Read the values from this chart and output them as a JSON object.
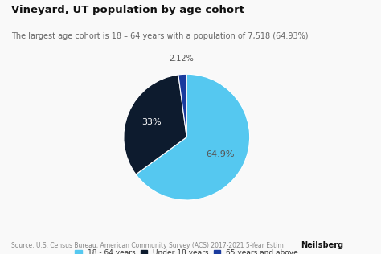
{
  "title": "Vineyard, UT population by age cohort",
  "subtitle": "The largest age cohort is 18 – 64 years with a population of 7,518 (64.93%)",
  "slices": [
    64.93,
    32.95,
    2.12
  ],
  "labels": [
    "18 - 64 years",
    "Under 18 years",
    "65 years and above"
  ],
  "colors": [
    "#55c8f0",
    "#0d1b2e",
    "#1a3b9e"
  ],
  "pct_labels": [
    "64.9%",
    "33%",
    "2.12%"
  ],
  "source_text": "Source: U.S. Census Bureau, American Community Survey (ACS) 2017-2021 5-Year Estim",
  "neilsberg_text": "Neilsberg",
  "background_color": "#f9f9f9",
  "startangle": 90,
  "title_fontsize": 9.5,
  "subtitle_fontsize": 7.0,
  "legend_fontsize": 6.5,
  "source_fontsize": 5.5
}
